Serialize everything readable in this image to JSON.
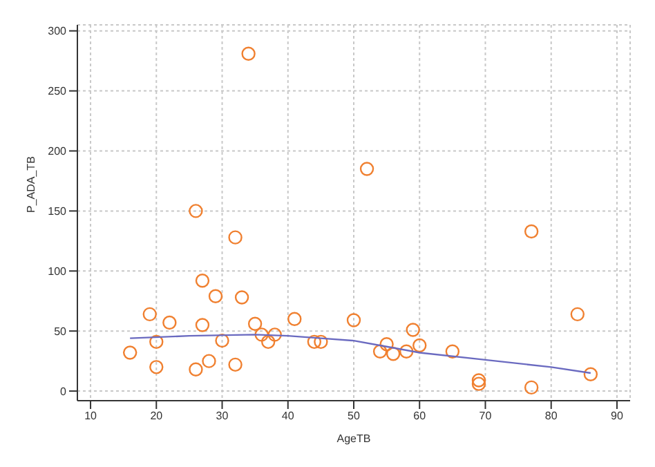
{
  "chart_data": {
    "type": "scatter",
    "xlabel": "AgeTB",
    "ylabel": "P_ADA_TB",
    "xlim": [
      8,
      92
    ],
    "xticks": [
      10,
      20,
      30,
      40,
      50,
      60,
      70,
      80,
      90
    ],
    "ylim": [
      -8,
      305
    ],
    "yticks": [
      0,
      50,
      100,
      150,
      200,
      250,
      300
    ],
    "grid": true,
    "marker": "circle",
    "series": [
      {
        "color": "#f08030",
        "x": [
          16,
          19,
          20,
          20,
          22,
          26,
          26,
          27,
          27,
          28,
          29,
          30,
          32,
          32,
          33,
          34,
          35,
          36,
          37,
          38,
          41,
          44,
          45,
          50,
          52,
          54,
          55,
          56,
          58,
          59,
          60,
          65,
          69,
          69,
          77,
          77,
          84,
          86
        ],
        "values": [
          32,
          64,
          41,
          20,
          57,
          150,
          18,
          92,
          55,
          25,
          79,
          42,
          128,
          22,
          78,
          281,
          56,
          47,
          41,
          47,
          60,
          41,
          41,
          59,
          185,
          33,
          39,
          31,
          33,
          51,
          38,
          33,
          9,
          6,
          133,
          3,
          64,
          14
        ]
      },
      {
        "type": "line",
        "color": "#6a6ac0",
        "marker": "none",
        "x": [
          16,
          25,
          35,
          40,
          45,
          50,
          55,
          60,
          70,
          80,
          86
        ],
        "values": [
          44,
          46,
          47,
          46,
          44,
          42,
          37,
          32,
          26,
          20,
          15
        ]
      }
    ]
  }
}
